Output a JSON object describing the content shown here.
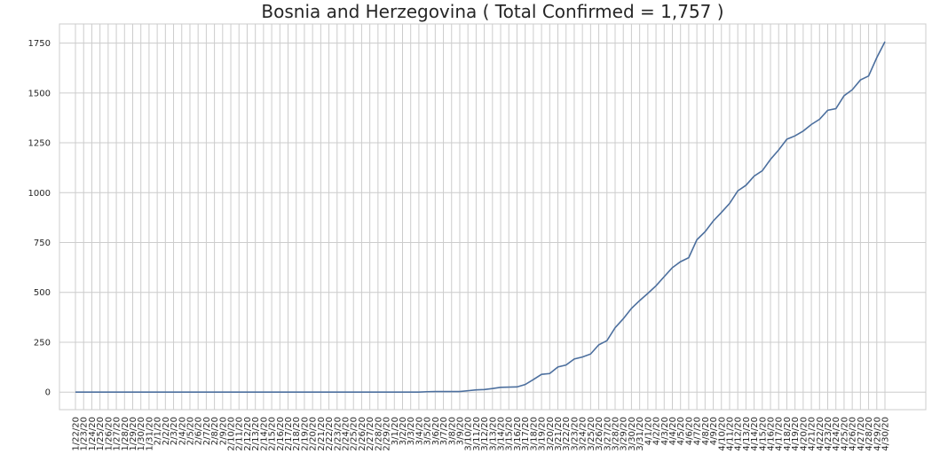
{
  "chart_data": {
    "type": "line",
    "title": "Bosnia and Herzegovina ( Total Confirmed = 1,757 )",
    "categories": [
      "1/22/20",
      "1/23/20",
      "1/24/20",
      "1/25/20",
      "1/26/20",
      "1/27/20",
      "1/28/20",
      "1/29/20",
      "1/30/20",
      "1/31/20",
      "2/1/20",
      "2/2/20",
      "2/3/20",
      "2/4/20",
      "2/5/20",
      "2/6/20",
      "2/7/20",
      "2/8/20",
      "2/9/20",
      "2/10/20",
      "2/11/20",
      "2/12/20",
      "2/13/20",
      "2/14/20",
      "2/15/20",
      "2/16/20",
      "2/17/20",
      "2/18/20",
      "2/19/20",
      "2/20/20",
      "2/21/20",
      "2/22/20",
      "2/23/20",
      "2/24/20",
      "2/25/20",
      "2/26/20",
      "2/27/20",
      "2/28/20",
      "2/29/20",
      "3/1/20",
      "3/2/20",
      "3/3/20",
      "3/4/20",
      "3/5/20",
      "3/6/20",
      "3/7/20",
      "3/8/20",
      "3/9/20",
      "3/10/20",
      "3/11/20",
      "3/12/20",
      "3/13/20",
      "3/14/20",
      "3/15/20",
      "3/16/20",
      "3/17/20",
      "3/18/20",
      "3/19/20",
      "3/20/20",
      "3/21/20",
      "3/22/20",
      "3/23/20",
      "3/24/20",
      "3/25/20",
      "3/26/20",
      "3/27/20",
      "3/28/20",
      "3/29/20",
      "3/30/20",
      "3/31/20",
      "4/1/20",
      "4/2/20",
      "4/3/20",
      "4/4/20",
      "4/5/20",
      "4/6/20",
      "4/7/20",
      "4/8/20",
      "4/9/20",
      "4/10/20",
      "4/11/20",
      "4/12/20",
      "4/13/20",
      "4/14/20",
      "4/15/20",
      "4/16/20",
      "4/17/20",
      "4/18/20",
      "4/19/20",
      "4/20/20",
      "4/21/20",
      "4/22/20",
      "4/23/20",
      "4/24/20",
      "4/25/20",
      "4/26/20",
      "4/27/20",
      "4/28/20",
      "4/29/20",
      "4/30/20"
    ],
    "series": [
      {
        "name": "Confirmed",
        "color": "#4c6f9e",
        "values": [
          0,
          0,
          0,
          0,
          0,
          0,
          0,
          0,
          0,
          0,
          0,
          0,
          0,
          0,
          0,
          0,
          0,
          0,
          0,
          0,
          0,
          0,
          0,
          0,
          0,
          0,
          0,
          0,
          0,
          0,
          0,
          0,
          0,
          0,
          0,
          0,
          0,
          0,
          0,
          0,
          0,
          0,
          0,
          2,
          3,
          3,
          3,
          3,
          7,
          11,
          13,
          18,
          24,
          25,
          26,
          38,
          63,
          89,
          93,
          126,
          136,
          166,
          176,
          191,
          237,
          258,
          323,
          368,
          420,
          459,
          495,
          533,
          579,
          624,
          654,
          674,
          764,
          804,
          858,
          901,
          946,
          1009,
          1037,
          1083,
          1110,
          1167,
          1214,
          1268,
          1285,
          1309,
          1342,
          1368,
          1413,
          1421,
          1486,
          1516,
          1565,
          1585,
          1677,
          1757
        ]
      }
    ],
    "ylim": [
      -88,
      1846
    ],
    "yticks": [
      0,
      250,
      500,
      750,
      1000,
      1250,
      1500,
      1750
    ],
    "grid": true
  }
}
